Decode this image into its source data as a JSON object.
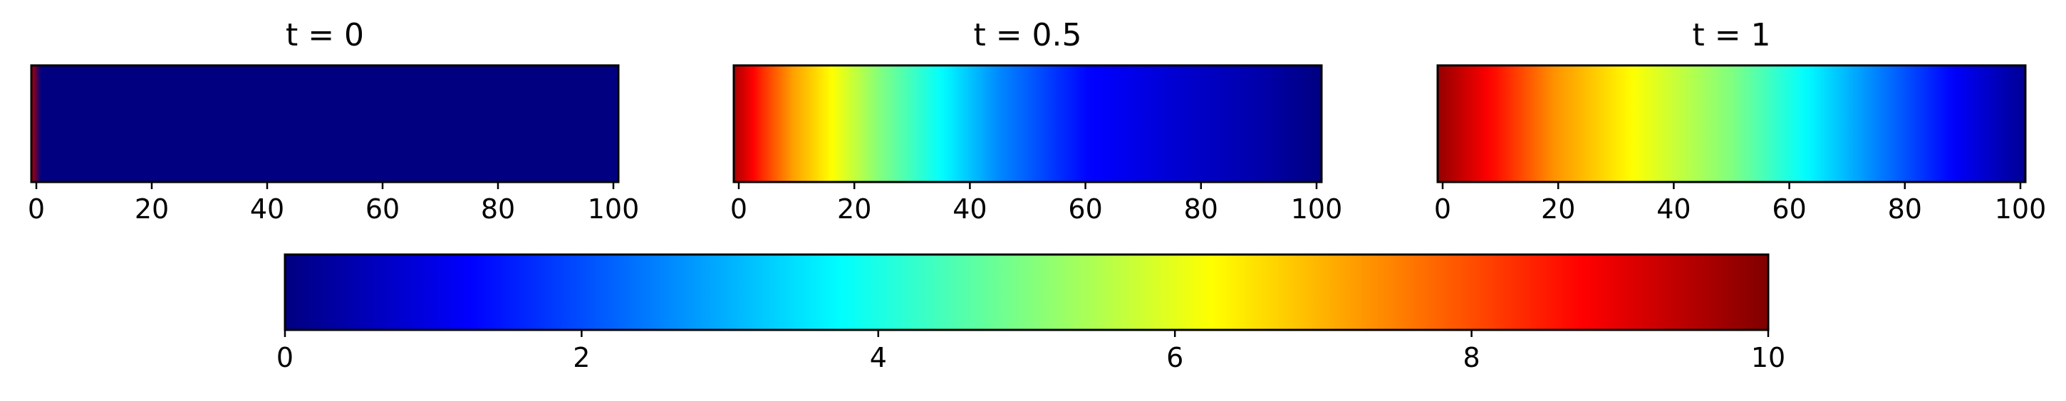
{
  "colormap": {
    "name": "jet",
    "stops": [
      "#000080",
      "#0000ff",
      "#0080ff",
      "#00ffff",
      "#80ff80",
      "#ffff00",
      "#ff8000",
      "#ff0000",
      "#800000"
    ]
  },
  "chart_data": [
    {
      "type": "heatmap",
      "title": "t = 0",
      "x_ticks": [
        "0",
        "20",
        "40",
        "60",
        "80",
        "100"
      ],
      "xlim": [
        0,
        100
      ],
      "clim": [
        0,
        10
      ],
      "profile": {
        "x": [
          0,
          1,
          100
        ],
        "value": [
          9.5,
          0,
          0
        ]
      }
    },
    {
      "type": "heatmap",
      "title": "t = 0.5",
      "x_ticks": [
        "0",
        "20",
        "40",
        "60",
        "80",
        "100"
      ],
      "xlim": [
        0,
        100
      ],
      "clim": [
        0,
        10
      ],
      "profile": {
        "x": [
          0,
          5,
          10,
          17,
          25,
          35,
          45,
          60,
          75,
          90,
          100
        ],
        "value": [
          9.6,
          8.3,
          7.2,
          6.2,
          5.0,
          3.8,
          2.6,
          1.3,
          0.8,
          0.4,
          0.0
        ]
      }
    },
    {
      "type": "heatmap",
      "title": "t = 1",
      "x_ticks": [
        "0",
        "20",
        "40",
        "60",
        "80",
        "100"
      ],
      "xlim": [
        0,
        100
      ],
      "clim": [
        0,
        10
      ],
      "profile": {
        "x": [
          0,
          10,
          20,
          35,
          50,
          62,
          75,
          88,
          95,
          100
        ],
        "value": [
          9.8,
          8.6,
          7.3,
          6.1,
          5.0,
          3.8,
          2.5,
          1.2,
          0.6,
          0.2
        ]
      }
    },
    {
      "type": "colorbar",
      "ticks": [
        "0",
        "2",
        "4",
        "6",
        "8",
        "10"
      ],
      "clim": [
        0,
        10
      ]
    }
  ]
}
